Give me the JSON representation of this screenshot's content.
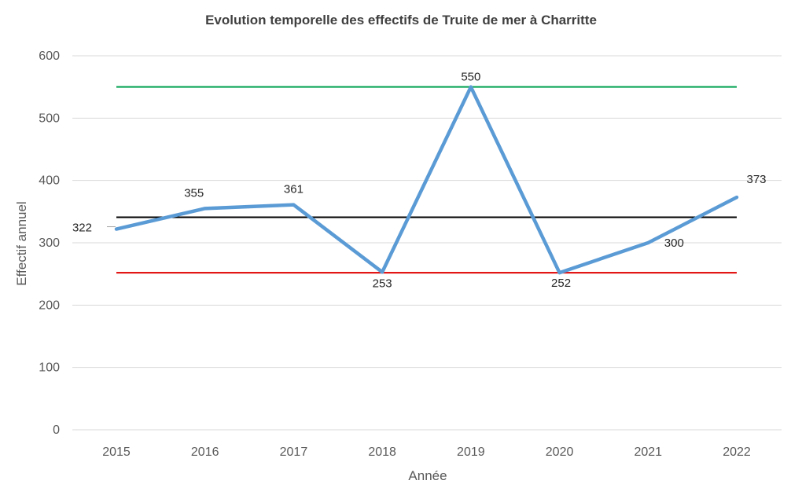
{
  "chart_data": {
    "type": "line",
    "title": "Evolution temporelle des effectifs de Truite de mer à Charritte",
    "xlabel": "Année",
    "ylabel": "Effectif annuel",
    "categories": [
      "2015",
      "2016",
      "2017",
      "2018",
      "2019",
      "2020",
      "2021",
      "2022"
    ],
    "series": [
      {
        "values": [
          322,
          355,
          361,
          253,
          550,
          252,
          300,
          373
        ],
        "color": "#5b9bd5"
      }
    ],
    "data_labels": [
      "322",
      "355",
      "361",
      "253",
      "550",
      "252",
      "300",
      "373"
    ],
    "reference_lines": [
      {
        "value": 550,
        "color": "#00a050"
      },
      {
        "value": 341,
        "color": "#000000"
      },
      {
        "value": 252,
        "color": "#e00000"
      }
    ],
    "ylim": [
      0,
      600
    ],
    "yticks": [
      0,
      100,
      200,
      300,
      400,
      500,
      600
    ],
    "grid": true,
    "legend": "none"
  }
}
